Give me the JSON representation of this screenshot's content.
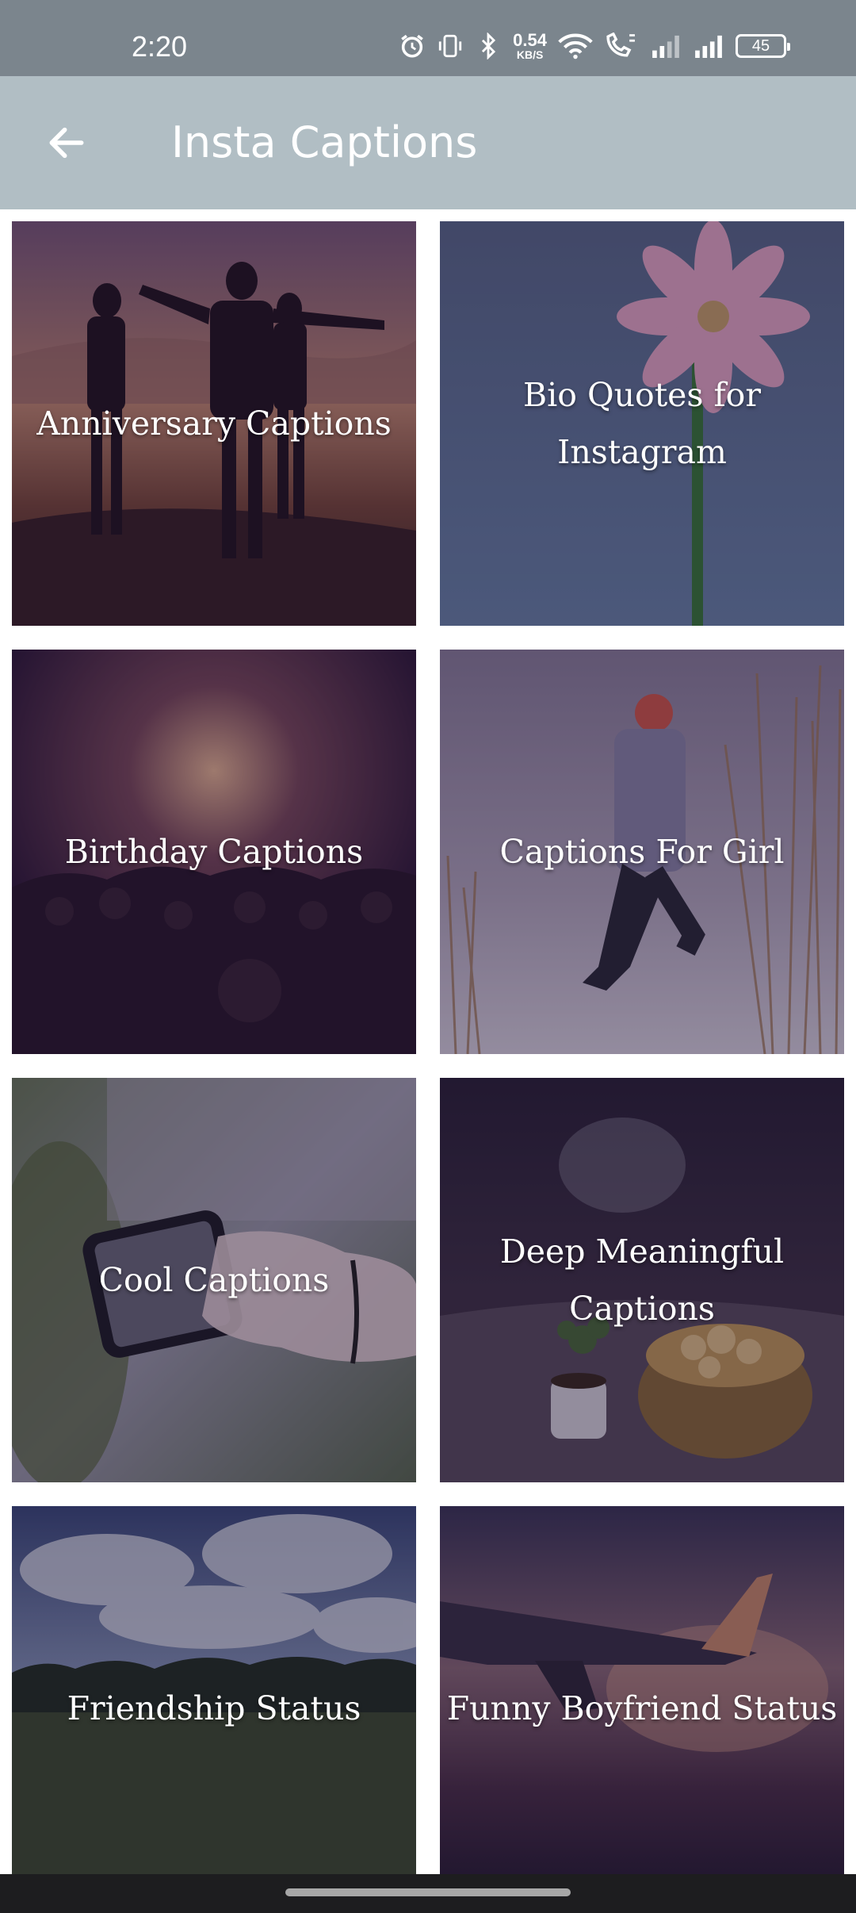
{
  "status_bar": {
    "time": "2:20",
    "net_speed_value": "0.54",
    "net_speed_unit": "KB/S",
    "battery_level": "45",
    "icons": [
      "alarm-icon",
      "vibrate-icon",
      "bluetooth-icon",
      "wifi-icon",
      "call-icon",
      "signal-icon",
      "signal-icon",
      "battery-icon"
    ]
  },
  "app_bar": {
    "title": "Insta Captions",
    "back_icon": "arrow-left-icon",
    "background": "#b1bec4"
  },
  "categories": [
    {
      "label": "Anniversary Captions"
    },
    {
      "label": "Bio Quotes for Instagram"
    },
    {
      "label": "Birthday Captions"
    },
    {
      "label": "Captions For Girl"
    },
    {
      "label": "Cool Captions"
    },
    {
      "label": "Deep Meaningful Captions"
    },
    {
      "label": "Friendship Status"
    },
    {
      "label": "Funny Boyfriend Status"
    }
  ]
}
